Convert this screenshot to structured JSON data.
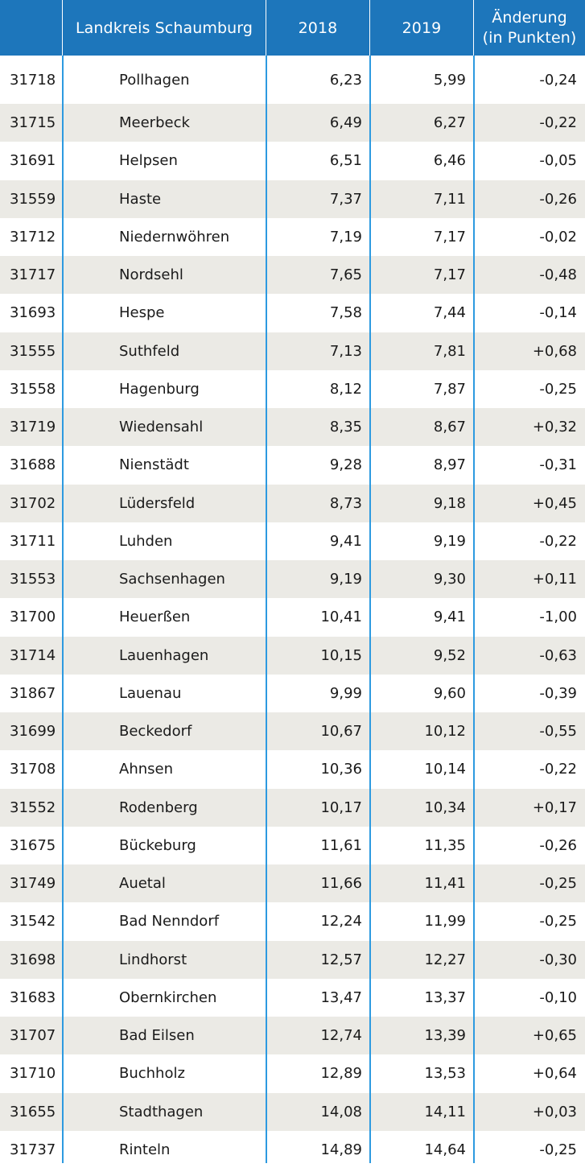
{
  "header": {
    "plz": "",
    "name": "Landkreis Schaumburg",
    "y2018": "2018",
    "y2019": "2019",
    "change_line1": "Änderung",
    "change_line2": "(in Punkten)"
  },
  "colors": {
    "header_bg": "#1d76bb",
    "alt_row_bg": "#ebeae5",
    "grid_line": "#2d9ae0"
  },
  "rows": [
    {
      "plz": "31718",
      "name": "Pollhagen",
      "y2018": "6,23",
      "y2019": "5,99",
      "change": "-0,24"
    },
    {
      "plz": "31715",
      "name": "Meerbeck",
      "y2018": "6,49",
      "y2019": "6,27",
      "change": "-0,22"
    },
    {
      "plz": "31691",
      "name": "Helpsen",
      "y2018": "6,51",
      "y2019": "6,46",
      "change": "-0,05"
    },
    {
      "plz": "31559",
      "name": "Haste",
      "y2018": "7,37",
      "y2019": "7,11",
      "change": "-0,26"
    },
    {
      "plz": "31712",
      "name": "Niedernwöhren",
      "y2018": "7,19",
      "y2019": "7,17",
      "change": "-0,02"
    },
    {
      "plz": "31717",
      "name": "Nordsehl",
      "y2018": "7,65",
      "y2019": "7,17",
      "change": "-0,48"
    },
    {
      "plz": "31693",
      "name": "Hespe",
      "y2018": "7,58",
      "y2019": "7,44",
      "change": "-0,14"
    },
    {
      "plz": "31555",
      "name": "Suthfeld",
      "y2018": "7,13",
      "y2019": "7,81",
      "change": "+0,68"
    },
    {
      "plz": "31558",
      "name": "Hagenburg",
      "y2018": "8,12",
      "y2019": "7,87",
      "change": "-0,25"
    },
    {
      "plz": "31719",
      "name": "Wiedensahl",
      "y2018": "8,35",
      "y2019": "8,67",
      "change": "+0,32"
    },
    {
      "plz": "31688",
      "name": "Nienstädt",
      "y2018": "9,28",
      "y2019": "8,97",
      "change": "-0,31"
    },
    {
      "plz": "31702",
      "name": "Lüdersfeld",
      "y2018": "8,73",
      "y2019": "9,18",
      "change": "+0,45"
    },
    {
      "plz": "31711",
      "name": "Luhden",
      "y2018": "9,41",
      "y2019": "9,19",
      "change": "-0,22"
    },
    {
      "plz": "31553",
      "name": "Sachsenhagen",
      "y2018": "9,19",
      "y2019": "9,30",
      "change": "+0,11"
    },
    {
      "plz": "31700",
      "name": "Heuerßen",
      "y2018": "10,41",
      "y2019": "9,41",
      "change": "-1,00"
    },
    {
      "plz": "31714",
      "name": "Lauenhagen",
      "y2018": "10,15",
      "y2019": "9,52",
      "change": "-0,63"
    },
    {
      "plz": "31867",
      "name": "Lauenau",
      "y2018": "9,99",
      "y2019": "9,60",
      "change": "-0,39"
    },
    {
      "plz": "31699",
      "name": "Beckedorf",
      "y2018": "10,67",
      "y2019": "10,12",
      "change": "-0,55"
    },
    {
      "plz": "31708",
      "name": "Ahnsen",
      "y2018": "10,36",
      "y2019": "10,14",
      "change": "-0,22"
    },
    {
      "plz": "31552",
      "name": "Rodenberg",
      "y2018": "10,17",
      "y2019": "10,34",
      "change": "+0,17"
    },
    {
      "plz": "31675",
      "name": "Bückeburg",
      "y2018": "11,61",
      "y2019": "11,35",
      "change": "-0,26"
    },
    {
      "plz": "31749",
      "name": "Auetal",
      "y2018": "11,66",
      "y2019": "11,41",
      "change": "-0,25"
    },
    {
      "plz": "31542",
      "name": "Bad Nenndorf",
      "y2018": "12,24",
      "y2019": "11,99",
      "change": "-0,25"
    },
    {
      "plz": "31698",
      "name": "Lindhorst",
      "y2018": "12,57",
      "y2019": "12,27",
      "change": "-0,30"
    },
    {
      "plz": "31683",
      "name": "Obernkirchen",
      "y2018": "13,47",
      "y2019": "13,37",
      "change": "-0,10"
    },
    {
      "plz": "31707",
      "name": "Bad Eilsen",
      "y2018": "12,74",
      "y2019": "13,39",
      "change": "+0,65"
    },
    {
      "plz": "31710",
      "name": "Buchholz",
      "y2018": "12,89",
      "y2019": "13,53",
      "change": "+0,64"
    },
    {
      "plz": "31655",
      "name": "Stadthagen",
      "y2018": "14,08",
      "y2019": "14,11",
      "change": "+0,03"
    },
    {
      "plz": "31737",
      "name": "Rinteln",
      "y2018": "14,89",
      "y2019": "14,64",
      "change": "-0,25"
    }
  ]
}
